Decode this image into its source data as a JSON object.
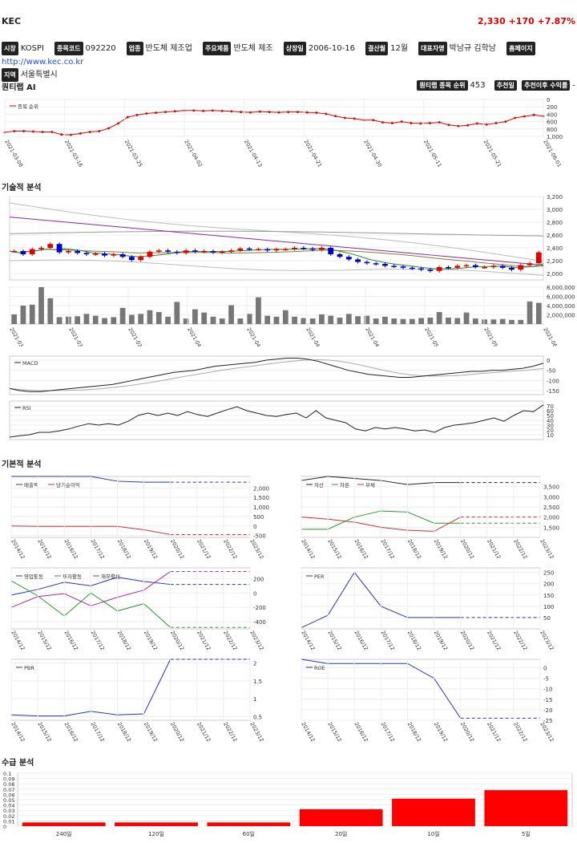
{
  "header": {
    "name": "KEC",
    "price": "2,330",
    "change": "+170",
    "pct": "+7.87%"
  },
  "info": [
    {
      "tag": "시장",
      "value": "KOSPI"
    },
    {
      "tag": "종목코드",
      "value": "092220"
    },
    {
      "tag": "업종",
      "value": "반도체 제조업"
    },
    {
      "tag": "주요제품",
      "value": "반도체 제조"
    },
    {
      "tag": "상장일",
      "value": "2006-10-16"
    },
    {
      "tag": "결산월",
      "value": "12월"
    },
    {
      "tag": "대표자명",
      "value": "박남규 김학남"
    },
    {
      "tag": "홈페이지",
      "value": "http://www.kec.co.kr"
    },
    {
      "tag": "지역",
      "value": "서울특별시"
    }
  ],
  "quantamp": {
    "title": "퀀티랩 AI",
    "rank_label": "퀀티랩 종목 순위",
    "rank_value": "453",
    "rec_label": "추천일",
    "ret_label": "추천이후 수익률",
    "ret_value": "-"
  },
  "sections": {
    "tech": "기술적 분석",
    "fund": "기본적 분석",
    "supply": "수급 분석"
  },
  "dates": [
    "2021-03-08",
    "2021-03-16",
    "2021-03-25",
    "2021-04-02",
    "2021-04-13",
    "2021-04-21",
    "2021-04-30",
    "2021-05-11",
    "2021-05-21",
    "2021-06-01"
  ],
  "years": [
    "2014/12",
    "2015/12",
    "2016/12",
    "2017/12",
    "2018/12",
    "2019/12",
    "2020/12",
    "2021/12",
    "2022/12",
    "2023/12"
  ],
  "chart_data": [
    {
      "type": "line",
      "name": "rank",
      "legend": "종목 순위",
      "ylim": [
        1000,
        0
      ],
      "yticks": [
        0,
        200,
        400,
        600,
        800,
        1000
      ],
      "values": [
        890,
        860,
        860,
        870,
        880,
        880,
        950,
        960,
        920,
        880,
        860,
        780,
        650,
        480,
        420,
        380,
        360,
        340,
        320,
        300,
        300,
        310,
        300,
        310,
        320,
        340,
        350,
        330,
        340,
        350,
        340,
        340,
        350,
        360,
        390,
        450,
        500,
        520,
        560,
        560,
        620,
        640,
        600,
        640,
        650,
        640,
        620,
        690,
        720,
        700,
        650,
        680,
        640,
        600,
        500,
        460,
        420,
        450
      ]
    },
    {
      "type": "candlestick",
      "name": "price",
      "ylim": [
        1900,
        3200
      ],
      "yticks": [
        2000,
        2200,
        2400,
        2600,
        2800,
        3000,
        3200
      ],
      "close": [
        2350,
        2300,
        2380,
        2400,
        2460,
        2330,
        2350,
        2320,
        2300,
        2310,
        2280,
        2300,
        2260,
        2210,
        2260,
        2340,
        2360,
        2340,
        2320,
        2360,
        2340,
        2350,
        2330,
        2340,
        2360,
        2390,
        2380,
        2380,
        2360,
        2380,
        2380,
        2400,
        2390,
        2370,
        2400,
        2300,
        2260,
        2220,
        2180,
        2160,
        2150,
        2120,
        2110,
        2090,
        2080,
        2060,
        2040,
        2100,
        2090,
        2120,
        2130,
        2100,
        2100,
        2120,
        2090,
        2060,
        2130,
        2160,
        2330
      ]
    },
    {
      "type": "bar",
      "name": "volume",
      "ylim": [
        0,
        8000000
      ],
      "yticks": [
        2000000,
        4000000,
        6000000,
        8000000
      ],
      "values": [
        2100000,
        4000000,
        4200000,
        8100000,
        5600000,
        1500000,
        1600000,
        1700000,
        2200000,
        1800000,
        1300000,
        1500000,
        3500000,
        2000000,
        2200000,
        3000000,
        2600000,
        1600000,
        4800000,
        1200000,
        3200000,
        2500000,
        1600000,
        1200000,
        4100000,
        1200000,
        2200000,
        5800000,
        1800000,
        1600000,
        3000000,
        1600000,
        1300000,
        1200000,
        2100000,
        1800000,
        1400000,
        2200000,
        1700000,
        1800000,
        1200000,
        1600000,
        1200000,
        1100000,
        1100000,
        1300000,
        1400000,
        2600000,
        1400000,
        1300000,
        2500000,
        1200000,
        1000000,
        1000000,
        1100000,
        900000,
        900000,
        4900000,
        4600000
      ]
    },
    {
      "type": "line",
      "name": "macd",
      "legend": "MACD",
      "ylim": [
        -170,
        20
      ],
      "yticks": [
        0,
        -50,
        -100,
        -150
      ],
      "values": [
        -140,
        -150,
        -155,
        -155,
        -150,
        -145,
        -140,
        -135,
        -130,
        -125,
        -120,
        -110,
        -100,
        -90,
        -80,
        -70,
        -60,
        -55,
        -50,
        -40,
        -30,
        -25,
        -20,
        -15,
        -10,
        0,
        5,
        10,
        10,
        5,
        -5,
        -20,
        -35,
        -50,
        -60,
        -70,
        -75,
        -80,
        -85,
        -85,
        -80,
        -75,
        -70,
        -65,
        -60,
        -55,
        -55,
        -50,
        -50,
        -45,
        -40,
        -30,
        -15
      ]
    },
    {
      "type": "line",
      "name": "rsi",
      "legend": "RSI",
      "ylim": [
        0,
        80
      ],
      "yticks": [
        10,
        20,
        30,
        40,
        50,
        60,
        70
      ],
      "values": [
        5,
        8,
        10,
        15,
        15,
        18,
        22,
        28,
        33,
        30,
        33,
        30,
        38,
        50,
        55,
        50,
        55,
        50,
        58,
        52,
        48,
        55,
        62,
        68,
        60,
        55,
        50,
        48,
        52,
        55,
        45,
        60,
        45,
        40,
        35,
        22,
        18,
        25,
        22,
        25,
        22,
        18,
        20,
        15,
        25,
        30,
        32,
        35,
        40,
        45,
        38,
        50,
        60,
        58,
        72
      ]
    },
    {
      "type": "line",
      "name": "sales",
      "legend": [
        "매출액",
        "당기순이익"
      ],
      "ylim": [
        -600,
        2600
      ],
      "yticks": [
        -500,
        0,
        500,
        1000,
        1500,
        2000
      ],
      "series": [
        {
          "name": "매출액",
          "values": [
            2700,
            2900,
            2850,
            2600,
            2350,
            2300,
            2300,
            2300,
            2300,
            2300
          ]
        },
        {
          "name": "당기순이익",
          "values": [
            0,
            -20,
            -20,
            -20,
            -20,
            -200,
            -450,
            -450,
            -450,
            -450
          ]
        }
      ]
    },
    {
      "type": "line",
      "name": "assets",
      "legend": [
        "자산",
        "자본",
        "부채"
      ],
      "ylim": [
        1000,
        4000
      ],
      "yticks": [
        1500,
        2000,
        2500,
        3000,
        3500
      ],
      "series": [
        {
          "name": "자산",
          "values": [
            3800,
            4100,
            3900,
            3800,
            3600,
            3700,
            3700,
            3700,
            3700,
            3700
          ]
        },
        {
          "name": "자본",
          "values": [
            1400,
            1400,
            2000,
            2300,
            2250,
            1700,
            1700,
            1700,
            1700,
            1700
          ]
        },
        {
          "name": "부채",
          "values": [
            2000,
            1900,
            1750,
            1500,
            1350,
            1300,
            2000,
            2000,
            2000,
            2000
          ]
        }
      ]
    },
    {
      "type": "line",
      "name": "cashflow",
      "legend": [
        "영업활동",
        "투자활동",
        "재무활동"
      ],
      "ylim": [
        -500,
        350
      ],
      "yticks": [
        -400,
        -200,
        0,
        200
      ],
      "series": [
        {
          "name": "영업활동",
          "values": [
            -30,
            50,
            150,
            100,
            220,
            160,
            120,
            120,
            120,
            120
          ]
        },
        {
          "name": "투자활동",
          "values": [
            170,
            -40,
            -320,
            0,
            -250,
            -150,
            -480,
            -480,
            -480,
            -480
          ]
        },
        {
          "name": "재무활동",
          "values": [
            -200,
            -50,
            -10,
            -180,
            -60,
            40,
            300,
            300,
            300,
            300
          ]
        }
      ]
    },
    {
      "type": "line",
      "name": "per",
      "legend": [
        "PER"
      ],
      "ylim": [
        0,
        270
      ],
      "yticks": [
        50,
        100,
        150,
        200,
        250
      ],
      "series": [
        {
          "name": "PER",
          "values": [
            5,
            60,
            250,
            100,
            50,
            50,
            50,
            50,
            50,
            50
          ]
        }
      ]
    },
    {
      "type": "line",
      "name": "pbr",
      "legend": [
        "PBR"
      ],
      "ylim": [
        0.4,
        2.1
      ],
      "yticks": [
        0.5,
        1,
        1.5,
        2
      ],
      "series": [
        {
          "name": "PBR",
          "values": [
            0.55,
            0.52,
            0.52,
            0.65,
            0.55,
            0.58,
            2.1,
            2.1,
            2.1,
            2.1
          ]
        }
      ]
    },
    {
      "type": "line",
      "name": "roe",
      "legend": [
        "ROE"
      ],
      "ylim": [
        -25,
        4
      ],
      "yticks": [
        0,
        -5,
        -10,
        -15,
        -20,
        -25
      ],
      "series": [
        {
          "name": "ROE",
          "values": [
            4,
            2,
            2,
            2,
            2,
            -5,
            -24,
            -24,
            -24,
            -24
          ]
        }
      ]
    },
    {
      "type": "bar",
      "name": "supply",
      "ylim": [
        0,
        0.1
      ],
      "yticks": [
        0,
        0.01,
        0.02,
        0.03,
        0.04,
        0.05,
        0.06,
        0.07,
        0.08,
        0.09,
        0.1
      ],
      "categories": [
        "240일",
        "120일",
        "60일",
        "20일",
        "10일",
        "5일"
      ],
      "values": [
        0.007,
        0.007,
        0.007,
        0.032,
        0.052,
        0.068
      ]
    }
  ],
  "colors": {
    "up": "#e00000",
    "down": "#0000d0"
  }
}
